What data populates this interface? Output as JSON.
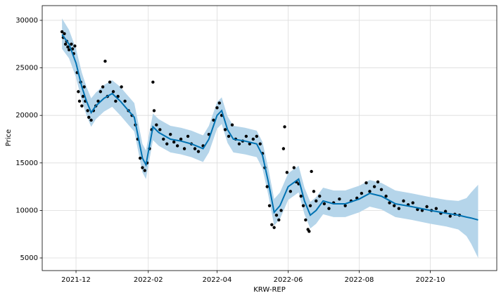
{
  "chart_data": {
    "type": "forecast",
    "xlabel": "KRW-REP",
    "ylabel": "Price",
    "xlim": [
      "2021-11-02",
      "2022-11-27"
    ],
    "ylim": [
      3670,
      31550
    ],
    "xticks": [
      {
        "value": "2021-12-01",
        "label": "2021-12"
      },
      {
        "value": "2022-02-01",
        "label": "2022-02"
      },
      {
        "value": "2022-04-01",
        "label": "2022-04"
      },
      {
        "value": "2022-06-01",
        "label": "2022-06"
      },
      {
        "value": "2022-08-01",
        "label": "2022-08"
      },
      {
        "value": "2022-10-01",
        "label": "2022-10"
      }
    ],
    "yticks": [
      5000,
      10000,
      15000,
      20000,
      25000,
      30000
    ],
    "grid": true,
    "band_color": "#b5d5ea",
    "line_color": "#0072b2",
    "point_color": "#000000",
    "forecast": {
      "x": [
        "2021-11-19",
        "2021-11-25",
        "2021-12-01",
        "2021-12-06",
        "2021-12-10",
        "2021-12-14",
        "2021-12-18",
        "2021-12-25",
        "2022-01-01",
        "2022-01-08",
        "2022-01-15",
        "2022-01-20",
        "2022-01-27",
        "2022-01-30",
        "2022-02-05",
        "2022-02-10",
        "2022-02-20",
        "2022-03-01",
        "2022-03-10",
        "2022-03-20",
        "2022-03-25",
        "2022-04-01",
        "2022-04-05",
        "2022-04-10",
        "2022-04-15",
        "2022-04-25",
        "2022-05-05",
        "2022-05-10",
        "2022-05-15",
        "2022-05-20",
        "2022-05-25",
        "2022-06-01",
        "2022-06-10",
        "2022-06-15",
        "2022-06-20",
        "2022-06-25",
        "2022-07-01",
        "2022-07-10",
        "2022-07-20",
        "2022-08-01",
        "2022-08-10",
        "2022-08-20",
        "2022-09-01",
        "2022-09-15",
        "2022-10-01",
        "2022-10-15",
        "2022-10-25",
        "2022-11-01",
        "2022-11-05",
        "2022-11-11"
      ],
      "yhat": [
        28500,
        27500,
        25500,
        23000,
        21500,
        20300,
        21000,
        21800,
        22300,
        21500,
        20500,
        19800,
        15500,
        14800,
        18800,
        18200,
        17500,
        17300,
        17000,
        16500,
        17500,
        20000,
        20500,
        18500,
        17500,
        17300,
        17000,
        15800,
        13000,
        9800,
        10500,
        12500,
        13300,
        11000,
        9500,
        10000,
        11000,
        10700,
        10700,
        11200,
        11800,
        11500,
        10700,
        10400,
        10000,
        9700,
        9500,
        9300,
        9200,
        9000
      ],
      "upper": [
        30200,
        29000,
        27000,
        24500,
        23000,
        21800,
        22400,
        23200,
        23700,
        23000,
        22000,
        21300,
        17000,
        16300,
        20200,
        19600,
        18900,
        18700,
        18400,
        17900,
        18900,
        21400,
        21900,
        19900,
        18900,
        18700,
        18400,
        17200,
        14400,
        11200,
        11900,
        13900,
        14700,
        12400,
        10900,
        11400,
        12400,
        12100,
        12100,
        12600,
        13200,
        12900,
        12100,
        11800,
        11400,
        11100,
        11000,
        11300,
        11900,
        12700
      ],
      "lower": [
        27000,
        26000,
        24000,
        21500,
        20000,
        18800,
        19600,
        20400,
        20900,
        20000,
        19000,
        18300,
        14000,
        13300,
        17400,
        16800,
        16100,
        15900,
        15600,
        15100,
        16100,
        18600,
        19100,
        17100,
        16100,
        15900,
        15600,
        14400,
        11600,
        8400,
        9100,
        11100,
        11900,
        9600,
        8100,
        8600,
        9600,
        9300,
        9300,
        9800,
        10400,
        10100,
        9300,
        9000,
        8600,
        8300,
        8000,
        7300,
        6500,
        5000
      ]
    },
    "observations": {
      "x": [
        "2021-11-19",
        "2021-11-20",
        "2021-11-21",
        "2021-11-22",
        "2021-11-23",
        "2021-11-24",
        "2021-11-25",
        "2021-11-27",
        "2021-11-28",
        "2021-11-29",
        "2021-11-30",
        "2021-12-02",
        "2021-12-03",
        "2021-12-04",
        "2021-12-05",
        "2021-12-06",
        "2021-12-07",
        "2021-12-08",
        "2021-12-09",
        "2021-12-11",
        "2021-12-12",
        "2021-12-14",
        "2021-12-16",
        "2021-12-18",
        "2021-12-20",
        "2021-12-22",
        "2021-12-24",
        "2021-12-26",
        "2021-12-28",
        "2021-12-30",
        "2022-01-02",
        "2022-01-04",
        "2022-01-06",
        "2022-01-09",
        "2022-01-12",
        "2022-01-15",
        "2022-01-18",
        "2022-01-21",
        "2022-01-23",
        "2022-01-25",
        "2022-01-27",
        "2022-01-29",
        "2022-01-31",
        "2022-02-02",
        "2022-02-04",
        "2022-02-05",
        "2022-02-06",
        "2022-02-08",
        "2022-02-11",
        "2022-02-14",
        "2022-02-17",
        "2022-02-20",
        "2022-02-23",
        "2022-02-26",
        "2022-03-01",
        "2022-03-04",
        "2022-03-07",
        "2022-03-10",
        "2022-03-13",
        "2022-03-16",
        "2022-03-20",
        "2022-03-25",
        "2022-03-29",
        "2022-04-01",
        "2022-04-03",
        "2022-04-05",
        "2022-04-08",
        "2022-04-11",
        "2022-04-14",
        "2022-04-17",
        "2022-04-20",
        "2022-04-23",
        "2022-04-26",
        "2022-04-29",
        "2022-05-02",
        "2022-05-05",
        "2022-05-08",
        "2022-05-10",
        "2022-05-12",
        "2022-05-14",
        "2022-05-16",
        "2022-05-18",
        "2022-05-20",
        "2022-05-22",
        "2022-05-24",
        "2022-05-26",
        "2022-05-28",
        "2022-05-29",
        "2022-05-31",
        "2022-06-03",
        "2022-06-06",
        "2022-06-08",
        "2022-06-10",
        "2022-06-12",
        "2022-06-14",
        "2022-06-16",
        "2022-06-18",
        "2022-06-19",
        "2022-06-20",
        "2022-06-21",
        "2022-06-23",
        "2022-06-25",
        "2022-06-28",
        "2022-07-02",
        "2022-07-06",
        "2022-07-10",
        "2022-07-15",
        "2022-07-20",
        "2022-07-25",
        "2022-07-30",
        "2022-08-03",
        "2022-08-07",
        "2022-08-10",
        "2022-08-14",
        "2022-08-17",
        "2022-08-20",
        "2022-08-24",
        "2022-08-27",
        "2022-08-31",
        "2022-09-04",
        "2022-09-08",
        "2022-09-12",
        "2022-09-16",
        "2022-09-20",
        "2022-09-24",
        "2022-09-28",
        "2022-10-02",
        "2022-10-06",
        "2022-10-10",
        "2022-10-14",
        "2022-10-18",
        "2022-10-22",
        "2022-10-26"
      ],
      "values": [
        28800,
        28200,
        28600,
        27500,
        27800,
        27200,
        26900,
        27500,
        27000,
        26500,
        27300,
        24500,
        22500,
        21500,
        23500,
        21000,
        22000,
        23000,
        21500,
        20500,
        19800,
        19500,
        20500,
        21000,
        21500,
        22500,
        23000,
        25700,
        22000,
        23500,
        22500,
        21500,
        22000,
        23000,
        21500,
        20500,
        20000,
        19000,
        17500,
        15500,
        14500,
        14200,
        15000,
        16500,
        18500,
        23500,
        20500,
        19000,
        18500,
        17500,
        17000,
        18000,
        17200,
        16800,
        17500,
        16500,
        17800,
        17000,
        16500,
        16200,
        16800,
        18000,
        19500,
        20800,
        21300,
        20000,
        18500,
        17800,
        19000,
        17500,
        17000,
        17300,
        17800,
        17000,
        17500,
        17800,
        17000,
        16000,
        14500,
        12500,
        10500,
        8500,
        8200,
        9500,
        9000,
        10000,
        16500,
        18800,
        14000,
        12000,
        14500,
        13000,
        12800,
        11500,
        10500,
        9000,
        8000,
        7800,
        10500,
        14100,
        12000,
        11000,
        11500,
        10700,
        10200,
        10800,
        11200,
        10500,
        11000,
        11300,
        11800,
        12900,
        12000,
        12500,
        13000,
        12200,
        11500,
        10800,
        10500,
        10200,
        11000,
        10600,
        10800,
        10100,
        10000,
        10400,
        10000,
        10200,
        9700,
        9900,
        9400,
        9600,
        9500
      ]
    }
  }
}
